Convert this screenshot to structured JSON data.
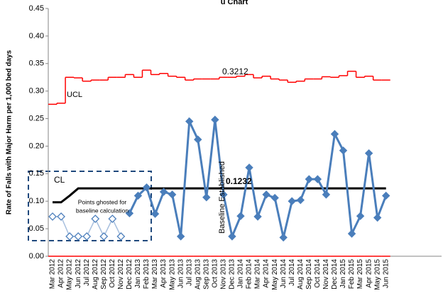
{
  "chart_data": {
    "type": "control",
    "title": "u Chart",
    "y_label": "Rate of Falls with Major Harm per 1,000 bed days",
    "categories": [
      "Mar 2012",
      "Apr 2012",
      "May 2012",
      "Jun 2012",
      "Jul 2012",
      "Aug 2012",
      "Sep 2012",
      "Oct 2012",
      "Nov 2012",
      "Dec 2012",
      "Jan 2013",
      "Feb 2013",
      "Mar 2013",
      "Apr 2013",
      "May 2013",
      "Jun 2013",
      "Jul 2013",
      "Aug 2013",
      "Sep 2013",
      "Oct 2013",
      "Nov 2013",
      "Dec 2013",
      "Jan 2014",
      "Feb 2014",
      "Mar 2014",
      "Apr 2014",
      "May 2014",
      "Jun 2014",
      "Jul 2014",
      "Aug 2014",
      "Sep 2014",
      "Oct 2014",
      "Nov 2014",
      "Dec 2014",
      "Jan 2015",
      "Feb 2015",
      "Mar 2015",
      "Apr 2015",
      "May 2015",
      "Jun 2015",
      null,
      null,
      null,
      null,
      null,
      null
    ],
    "ylim": [
      0,
      0.45
    ],
    "yticks": [
      {
        "value": 0,
        "label": "0.00"
      },
      {
        "value": 0.05,
        "label": "0.05"
      },
      {
        "value": 0.1,
        "label": "0.10"
      },
      {
        "value": 0.15,
        "label": "0.15"
      },
      {
        "value": 0.2,
        "label": "0.20"
      },
      {
        "value": 0.25,
        "label": "0.25"
      },
      {
        "value": 0.3,
        "label": "0.30"
      },
      {
        "value": 0.35,
        "label": "0.35"
      },
      {
        "value": 0.4,
        "label": "0.40"
      },
      {
        "value": 0.45,
        "label": "0.45"
      }
    ],
    "series": [
      {
        "style": "step",
        "color": "#ff0000",
        "values": [
          0.276,
          0.278,
          0.325,
          0.324,
          0.318,
          0.32,
          0.32,
          0.325,
          0.325,
          0.33,
          0.325,
          0.338,
          0.33,
          0.332,
          0.327,
          0.325,
          0.32,
          0.322,
          0.322,
          0.322,
          0.325,
          0.325,
          0.327,
          0.33,
          0.324,
          0.327,
          0.322,
          0.32,
          0.316,
          0.318,
          0.322,
          0.322,
          0.326,
          0.325,
          0.328,
          0.336,
          0.325,
          0.327,
          0.32,
          0.32,
          null,
          null,
          null,
          null,
          null,
          null
        ]
      },
      {
        "style": "step",
        "color": "#ff0000",
        "values": [
          0,
          0,
          0,
          0,
          0,
          0,
          0,
          0,
          0,
          0,
          0,
          0,
          0,
          0,
          0,
          0,
          0,
          0,
          0,
          0,
          0,
          0,
          0,
          0,
          0,
          0,
          0,
          0,
          0,
          0,
          0,
          0,
          0,
          0,
          0,
          0,
          0,
          0,
          0,
          0,
          null,
          null,
          null,
          null,
          null,
          null
        ]
      },
      {
        "style": "line",
        "color": "#000000",
        "values": [
          0.098,
          0.098,
          0.11,
          0.1232,
          0.1232,
          0.1232,
          0.1232,
          0.1232,
          0.1232,
          0.1232,
          0.1232,
          0.1232,
          0.1232,
          0.1232,
          0.1232,
          0.1232,
          0.1232,
          0.1232,
          0.1232,
          0.1232,
          0.1232,
          0.1232,
          0.1232,
          0.1232,
          0.1232,
          0.1232,
          0.1232,
          0.1232,
          0.1232,
          0.1232,
          0.1232,
          0.1232,
          0.1232,
          0.1232,
          0.1232,
          0.1232,
          0.1232,
          0.1232,
          0.1232,
          0.1232,
          null,
          null,
          null,
          null,
          null,
          null
        ]
      },
      {
        "style": "ghost",
        "color": "#4f81bd",
        "values": [
          0.072,
          0.072,
          0.036,
          0.036,
          0.036,
          0.068,
          0.036,
          0.068,
          0.036,
          null,
          null,
          null,
          null,
          null,
          null,
          null,
          null,
          null,
          null,
          null,
          null,
          null,
          null,
          null,
          null,
          null,
          null,
          null,
          null,
          null,
          null,
          null,
          null,
          null,
          null,
          null,
          null,
          null,
          null,
          null,
          null,
          null,
          null,
          null,
          null,
          null
        ]
      },
      {
        "style": "diamond",
        "color": "#4a7ebb",
        "values": [
          null,
          null,
          null,
          null,
          null,
          null,
          null,
          null,
          null,
          0.078,
          0.11,
          0.125,
          0.077,
          0.117,
          0.112,
          0.036,
          0.245,
          0.212,
          0.107,
          0.248,
          0.112,
          0.036,
          0.073,
          0.161,
          0.072,
          0.112,
          0.106,
          0.034,
          0.1,
          0.102,
          0.14,
          0.14,
          0.112,
          0.222,
          0.192,
          0.041,
          0.073,
          0.187,
          0.07,
          0.11,
          null,
          null,
          null,
          null,
          null,
          null
        ]
      }
    ],
    "annotations": {
      "ucl": "UCL",
      "cl": "CL",
      "ucl_value": "0.3212",
      "cl_value": "0.1232",
      "baseline": "Baseline Established",
      "ghost_note": [
        "Points ghosted for",
        "baseline calculation"
      ]
    }
  }
}
